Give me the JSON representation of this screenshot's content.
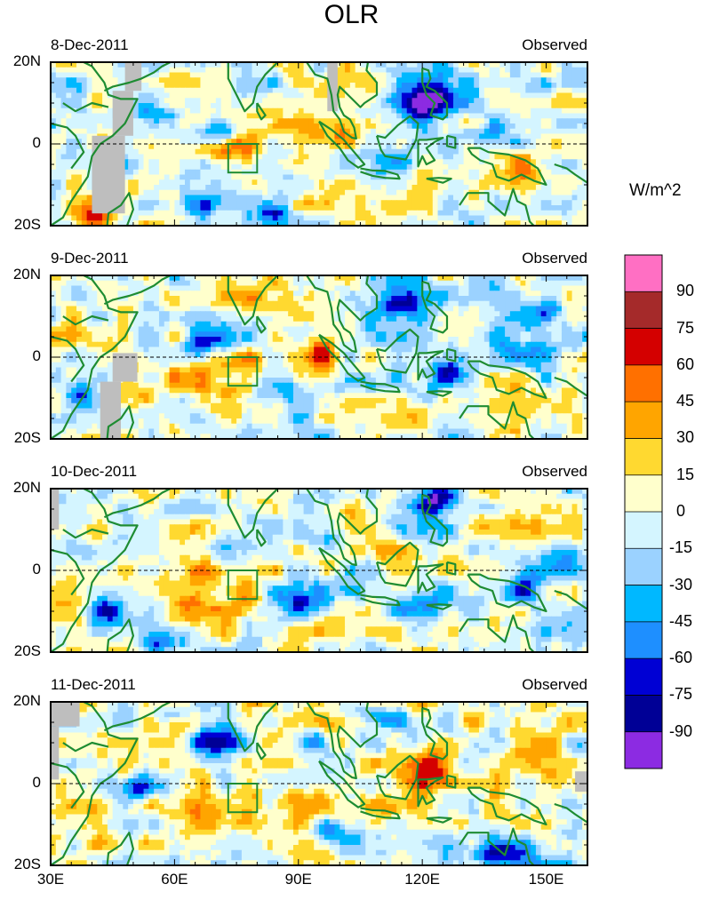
{
  "chart_data": {
    "type": "heatmap",
    "title": "OLR",
    "units_label": "W/m^2",
    "x_ticks": [
      "30E",
      "60E",
      "90E",
      "120E",
      "150E"
    ],
    "x_values": [
      30,
      60,
      90,
      120,
      150
    ],
    "y_ticks": [
      "20N",
      "0",
      "20S"
    ],
    "y_values": [
      20,
      0,
      -20
    ],
    "xlim": [
      30,
      160
    ],
    "ylim": [
      -20,
      20
    ],
    "colorbar": {
      "levels": [
        "90",
        "75",
        "60",
        "45",
        "30",
        "15",
        "0",
        "-15",
        "-30",
        "-45",
        "-60",
        "-75",
        "-90"
      ],
      "colors": [
        "#ff6fc3",
        "#a52a2a",
        "#d40000",
        "#ff7000",
        "#ffa500",
        "#ffd930",
        "#ffffcc",
        "#d4f5ff",
        "#9bd2ff",
        "#00b8ff",
        "#1e8fff",
        "#0000d4",
        "#000096",
        "#8c2be2"
      ]
    },
    "missing_color": "#bebebe",
    "coast_color": "#1e8c32",
    "panels": [
      {
        "date": "8-Dec-2011",
        "source": "Observed"
      },
      {
        "date": "9-Dec-2011",
        "source": "Observed"
      },
      {
        "date": "10-Dec-2011",
        "source": "Observed"
      },
      {
        "date": "11-Dec-2011",
        "source": "Observed"
      }
    ]
  }
}
